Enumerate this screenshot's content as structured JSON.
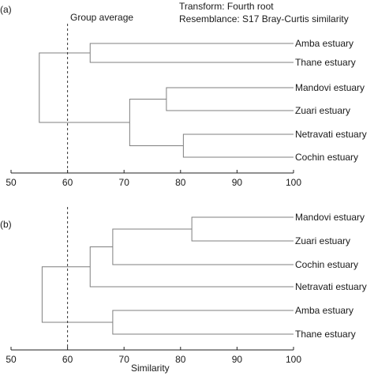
{
  "header": {
    "transform": "Transform: Fourth root",
    "resemblance": "Resemblance: S17 Bray-Curtis similarity"
  },
  "reference": {
    "label": "Group average",
    "value": 60
  },
  "xlabel": "Similarity",
  "chart_data": [
    {
      "type": "dendrogram",
      "panel": "(a)",
      "xlim": [
        50,
        100
      ],
      "ticks": [
        50,
        60,
        70,
        80,
        90,
        100
      ],
      "tick_labels": [
        "50",
        "60",
        "70",
        "80",
        "90",
        "100"
      ],
      "leaves": [
        "Amba estuary",
        "Thane estuary",
        "Mandovi estuary",
        "Zuari estuary",
        "Netravati estuary",
        "Cochin estuary"
      ],
      "merges": [
        {
          "left": 0,
          "right": 1,
          "similarity": 64
        },
        {
          "left": 2,
          "right": 3,
          "similarity": 77.5
        },
        {
          "left": 4,
          "right": 5,
          "similarity": 80.5
        },
        {
          "left": "m1",
          "right": "m2",
          "similarity": 71
        },
        {
          "left": "m0",
          "right": "m3",
          "similarity": 55
        }
      ]
    },
    {
      "type": "dendrogram",
      "panel": "(b)",
      "xlim": [
        50,
        100
      ],
      "ticks": [
        50,
        60,
        70,
        80,
        90,
        100
      ],
      "tick_labels": [
        "50",
        "60",
        "70",
        "80",
        "90",
        "100"
      ],
      "leaves": [
        "Mandovi estuary",
        "Zuari estuary",
        "Cochin estuary",
        "Netravati estuary",
        "Amba estuary",
        "Thane estuary"
      ],
      "merges": [
        {
          "left": 0,
          "right": 1,
          "similarity": 82
        },
        {
          "left": "m0",
          "right": 2,
          "similarity": 68
        },
        {
          "left": "m1",
          "right": 3,
          "similarity": 64
        },
        {
          "left": 4,
          "right": 5,
          "similarity": 68
        },
        {
          "left": "m2",
          "right": "m3",
          "similarity": 55.5
        }
      ]
    }
  ]
}
